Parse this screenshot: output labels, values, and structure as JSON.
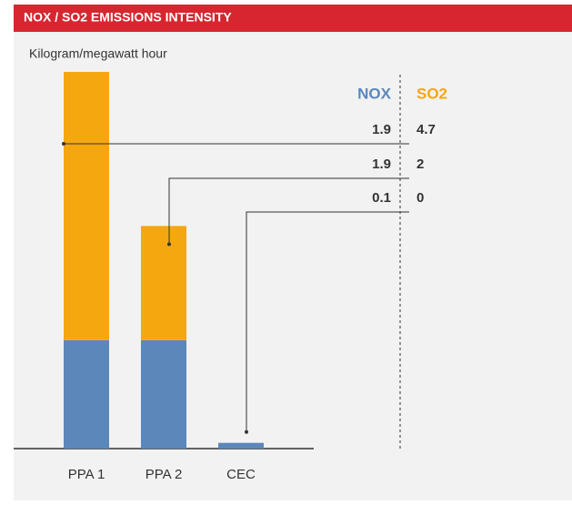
{
  "chart_data": {
    "type": "stacked-bar",
    "title": "NOX / SO2 EMISSIONS INTENSITY",
    "y_label": "Kilogram/megawatt hour",
    "categories": [
      "PPA 1",
      "PPA 2",
      "CEC"
    ],
    "series": [
      {
        "name": "NOX",
        "color": "#5b87bb",
        "values": [
          1.9,
          1.9,
          0.1
        ]
      },
      {
        "name": "SO2",
        "color": "#f5a70f",
        "values": [
          4.7,
          2.0,
          0
        ]
      }
    ]
  }
}
